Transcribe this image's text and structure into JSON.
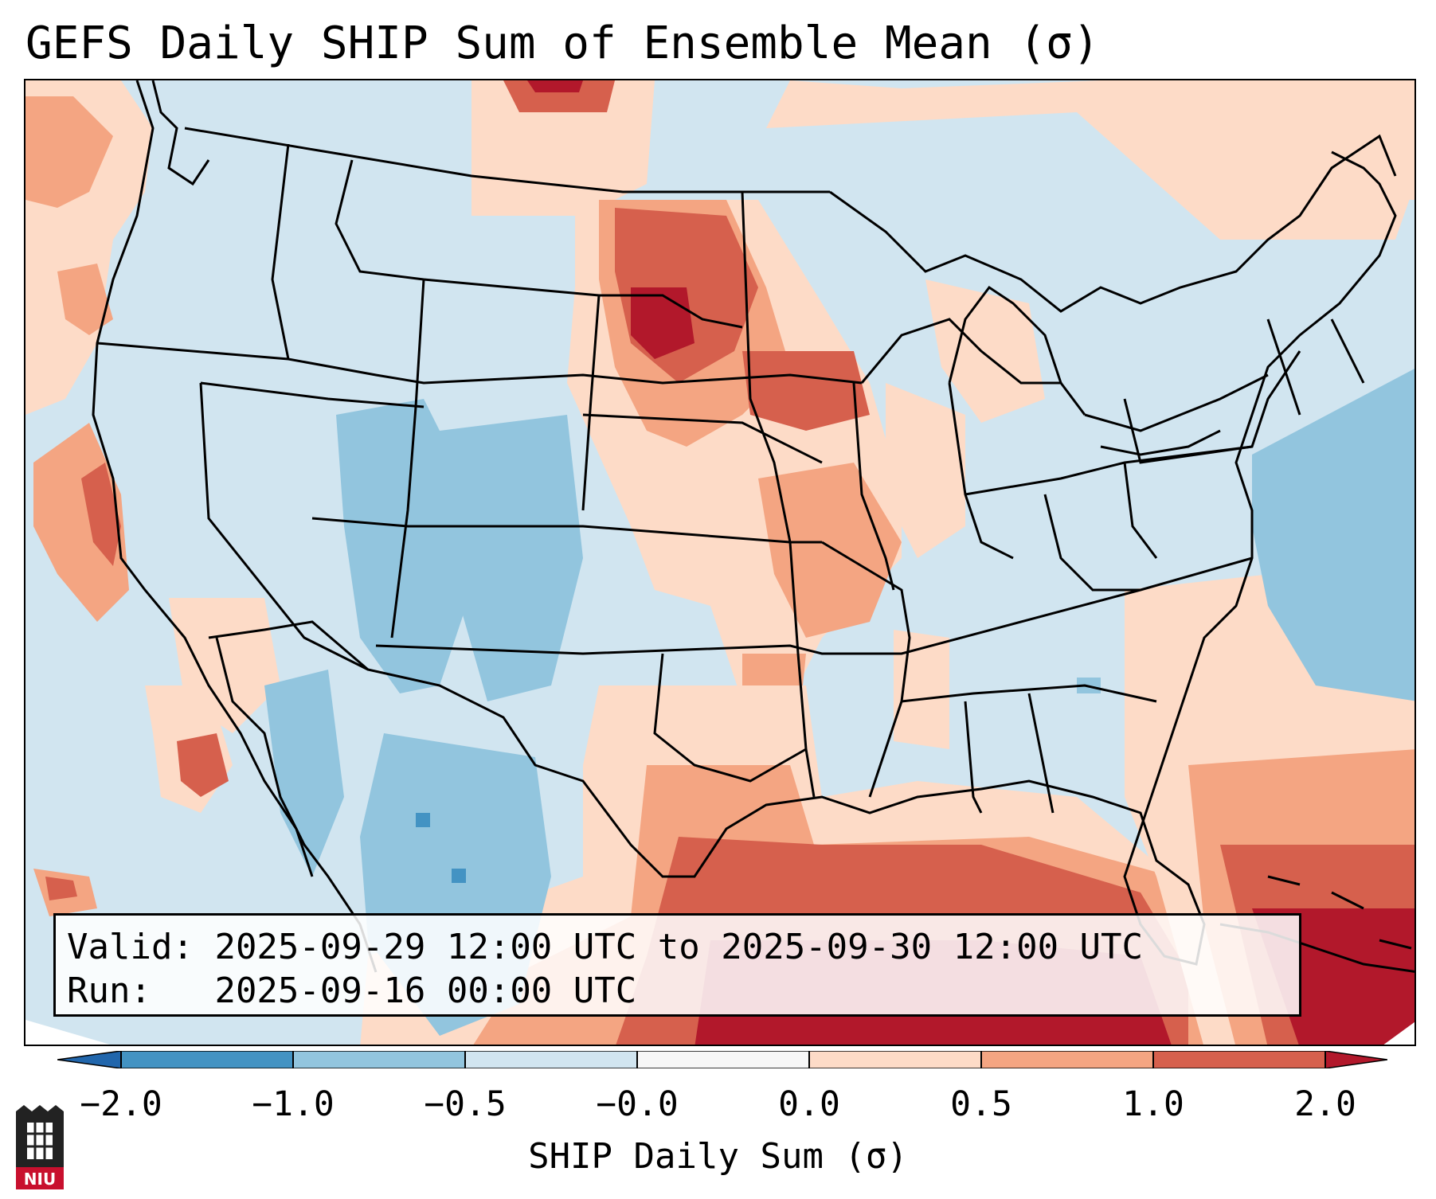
{
  "title": "GEFS Daily SHIP Sum of Ensemble Mean (σ)",
  "info": {
    "valid_label": "Valid:",
    "valid_value": "2025-09-29 12:00 UTC to 2025-09-30 12:00 UTC",
    "run_label": "Run:",
    "run_value": "2025-09-16 00:00 UTC"
  },
  "colorbar": {
    "label": "SHIP Daily Sum (σ)",
    "ticks": [
      "−2.0",
      "−1.0",
      "−0.5",
      "−0.0",
      "0.0",
      "0.5",
      "1.0",
      "2.0"
    ],
    "bin_colors": [
      "#4393c3",
      "#92c5de",
      "#d1e5f0",
      "#f7f7f7",
      "#fddbc7",
      "#f4a582",
      "#d6604d",
      "#b2182b"
    ],
    "under_color": "#2166ac",
    "over_color": "#b2182b"
  },
  "map": {
    "projection": "Lambert conformal, CONUS",
    "regions": [
      {
        "name": "northern-plains-maximum",
        "level": 1.4
      },
      {
        "name": "gulf-of-mexico-maximum",
        "level": 2.0
      },
      {
        "name": "four-corners-minimum",
        "level": -0.8
      },
      {
        "name": "west-atlantic-minimum",
        "level": -0.7
      }
    ]
  },
  "logo": {
    "text": "NIU"
  }
}
